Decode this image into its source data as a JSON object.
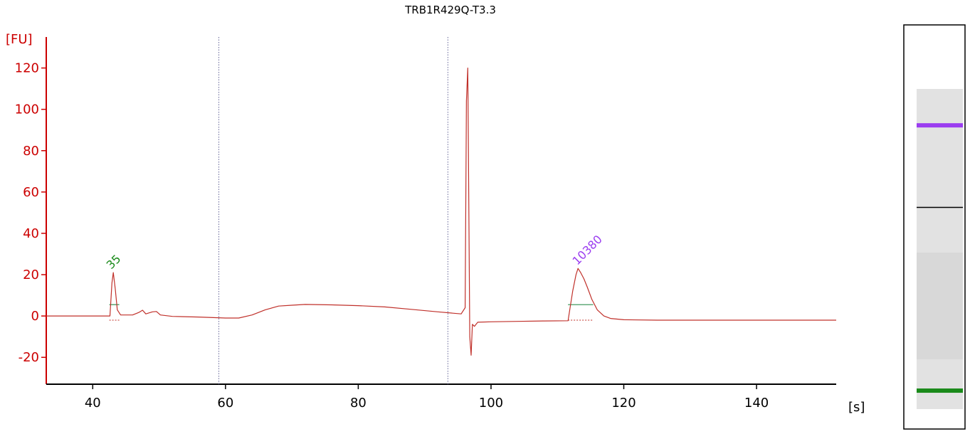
{
  "chart_data": {
    "type": "line",
    "title": "TRB1R429Q-T3.3",
    "ylabel": "[FU]",
    "xlabel": "[s]",
    "xlim": [
      33,
      152
    ],
    "ylim": [
      -33,
      135
    ],
    "xticks": [
      40,
      60,
      80,
      100,
      120,
      140
    ],
    "yticks": [
      -20,
      0,
      20,
      40,
      60,
      80,
      100,
      120
    ],
    "grid": false,
    "vertical_markers_s": [
      59.0,
      93.5
    ],
    "colors": {
      "trace": "#c0302a",
      "axis": "#cc0000",
      "lower_marker": "#1a8a1a",
      "upper_marker": "#9b3df0",
      "baseline": "#2f8f4f"
    },
    "series": [
      {
        "x": [
          33,
          40,
          42.6,
          42.9,
          43.1,
          43.4,
          43.7,
          44.2,
          46,
          47,
          47.5,
          48,
          49,
          49.6,
          50.2,
          52,
          56,
          60,
          62,
          64,
          66,
          68,
          70,
          72,
          76,
          80,
          84,
          88,
          92,
          95.5,
          96.1,
          96.3,
          96.5,
          96.6,
          96.8,
          97.0,
          97.2,
          97.5,
          98,
          100,
          104,
          108,
          111.6,
          112.3,
          112.8,
          113.1,
          113.5,
          114,
          114.5,
          115.2,
          116,
          117,
          118,
          120,
          125,
          130,
          140,
          152
        ],
        "y": [
          0,
          0,
          0,
          16,
          21,
          13,
          3,
          0.5,
          0.5,
          1.8,
          2.8,
          1,
          2,
          2.2,
          0.5,
          -0.2,
          -0.5,
          -1,
          -1,
          0.5,
          3,
          4.8,
          5.2,
          5.6,
          5.4,
          5.0,
          4.4,
          3.2,
          2,
          1,
          4,
          104,
          120,
          80,
          -10,
          -19,
          -4,
          -5,
          -3,
          -2.8,
          -2.6,
          -2.4,
          -2.3,
          12,
          20,
          23,
          21,
          18,
          14,
          8,
          3,
          0,
          -1.2,
          -1.8,
          -2,
          -2,
          -2,
          -2
        ]
      }
    ],
    "peaks": [
      {
        "label": "35",
        "x": 43.0,
        "y": 21,
        "baseline_y": 5.5,
        "x_from": 42.5,
        "x_to": 44.0,
        "color": "#1a8a1a"
      },
      {
        "label": "10380",
        "x": 113.2,
        "y": 23,
        "baseline_y": 5.5,
        "x_from": 111.6,
        "x_to": 115.4,
        "color": "#9b3df0"
      }
    ],
    "gel_lane": {
      "bands": [
        {
          "name": "upper-marker-band",
          "color": "#9b3df0",
          "position": 0.2485
        },
        {
          "name": "ladder-line",
          "color": "#000000",
          "position": 0.4515
        },
        {
          "name": "lower-marker-band",
          "color": "#1a8a1a",
          "position": 0.905
        }
      ]
    }
  }
}
